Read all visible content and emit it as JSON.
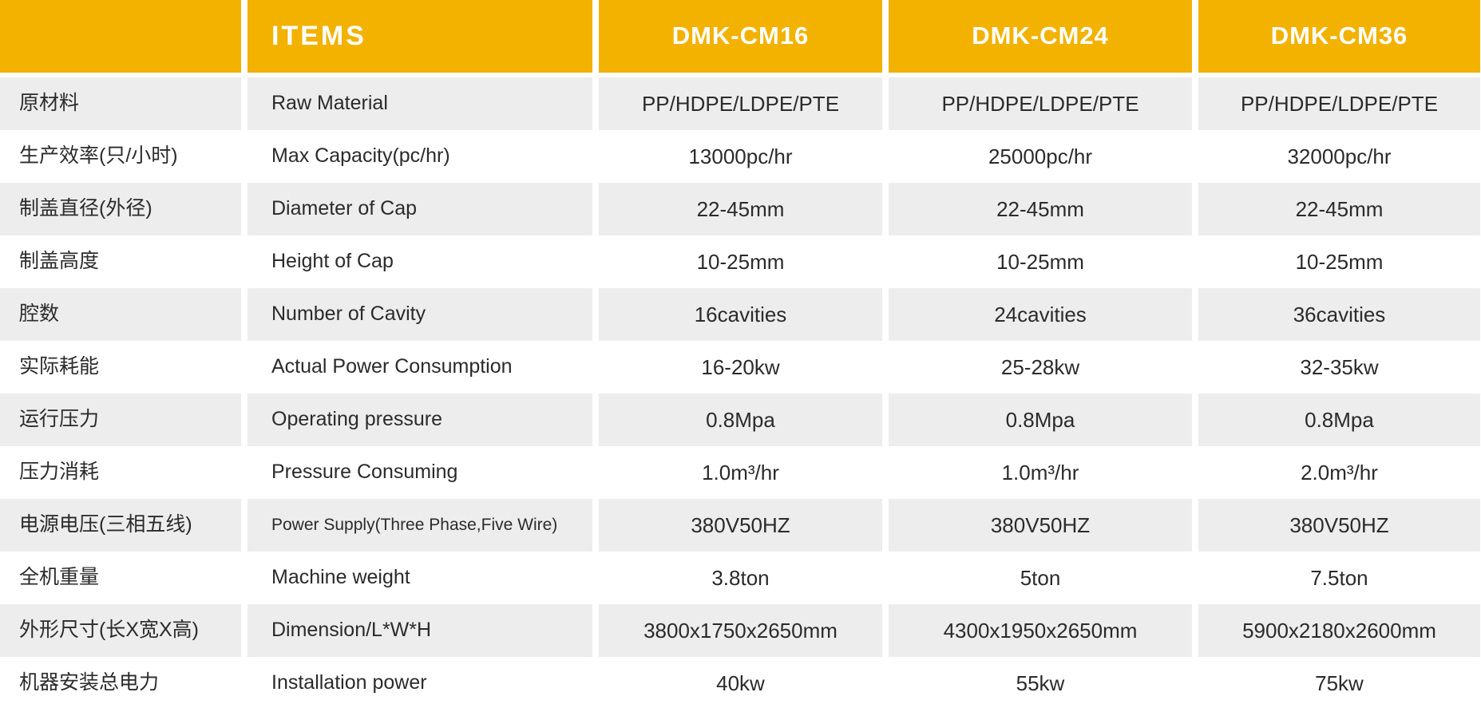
{
  "table": {
    "header": {
      "corner_label": "",
      "items_label": "ITEMS",
      "models": [
        "DMK-CM16",
        "DMK-CM24",
        "DMK-CM36"
      ]
    },
    "rows": [
      {
        "cn": "原材料",
        "en": "Raw Material",
        "values": [
          "PP/HDPE/LDPE/PTE",
          "PP/HDPE/LDPE/PTE",
          "PP/HDPE/LDPE/PTE"
        ]
      },
      {
        "cn": "生产效率(只/小时)",
        "en": "Max Capacity(pc/hr)",
        "values": [
          "13000pc/hr",
          "25000pc/hr",
          "32000pc/hr"
        ]
      },
      {
        "cn": "制盖直径(外径)",
        "en": "Diameter of Cap",
        "values": [
          "22-45mm",
          "22-45mm",
          "22-45mm"
        ]
      },
      {
        "cn": "制盖高度",
        "en": "Height of Cap",
        "values": [
          "10-25mm",
          "10-25mm",
          "10-25mm"
        ]
      },
      {
        "cn": "腔数",
        "en": "Number of Cavity",
        "values": [
          "16cavities",
          "24cavities",
          "36cavities"
        ]
      },
      {
        "cn": "实际耗能",
        "en": "Actual Power Consumption",
        "values": [
          "16-20kw",
          "25-28kw",
          "32-35kw"
        ]
      },
      {
        "cn": "运行压力",
        "en": "Operating pressure",
        "values": [
          "0.8Mpa",
          "0.8Mpa",
          "0.8Mpa"
        ]
      },
      {
        "cn": "压力消耗",
        "en": "Pressure Consuming",
        "values": [
          "1.0m³/hr",
          "1.0m³/hr",
          "2.0m³/hr"
        ]
      },
      {
        "cn": "电源电压(三相五线)",
        "en": "Power Supply(Three Phase,Five Wire)",
        "values": [
          "380V50HZ",
          "380V50HZ",
          "380V50HZ"
        ]
      },
      {
        "cn": "全机重量",
        "en": "Machine weight",
        "values": [
          "3.8ton",
          "5ton",
          "7.5ton"
        ]
      },
      {
        "cn": "外形尺寸(长X宽X高)",
        "en": "Dimension/L*W*H",
        "values": [
          "3800x1750x2650mm",
          "4300x1950x2650mm",
          "5900x2180x2600mm"
        ]
      },
      {
        "cn": "机器安装总电力",
        "en": "Installation power",
        "values": [
          "40kw",
          "55kw",
          "75kw"
        ]
      }
    ]
  },
  "colors": {
    "header_bg": "#F3B200",
    "header_text": "#FFFFFF",
    "row_alt_bg": "#EDEDED",
    "row_bg": "#FFFFFF",
    "text": "#2B2B2B"
  }
}
